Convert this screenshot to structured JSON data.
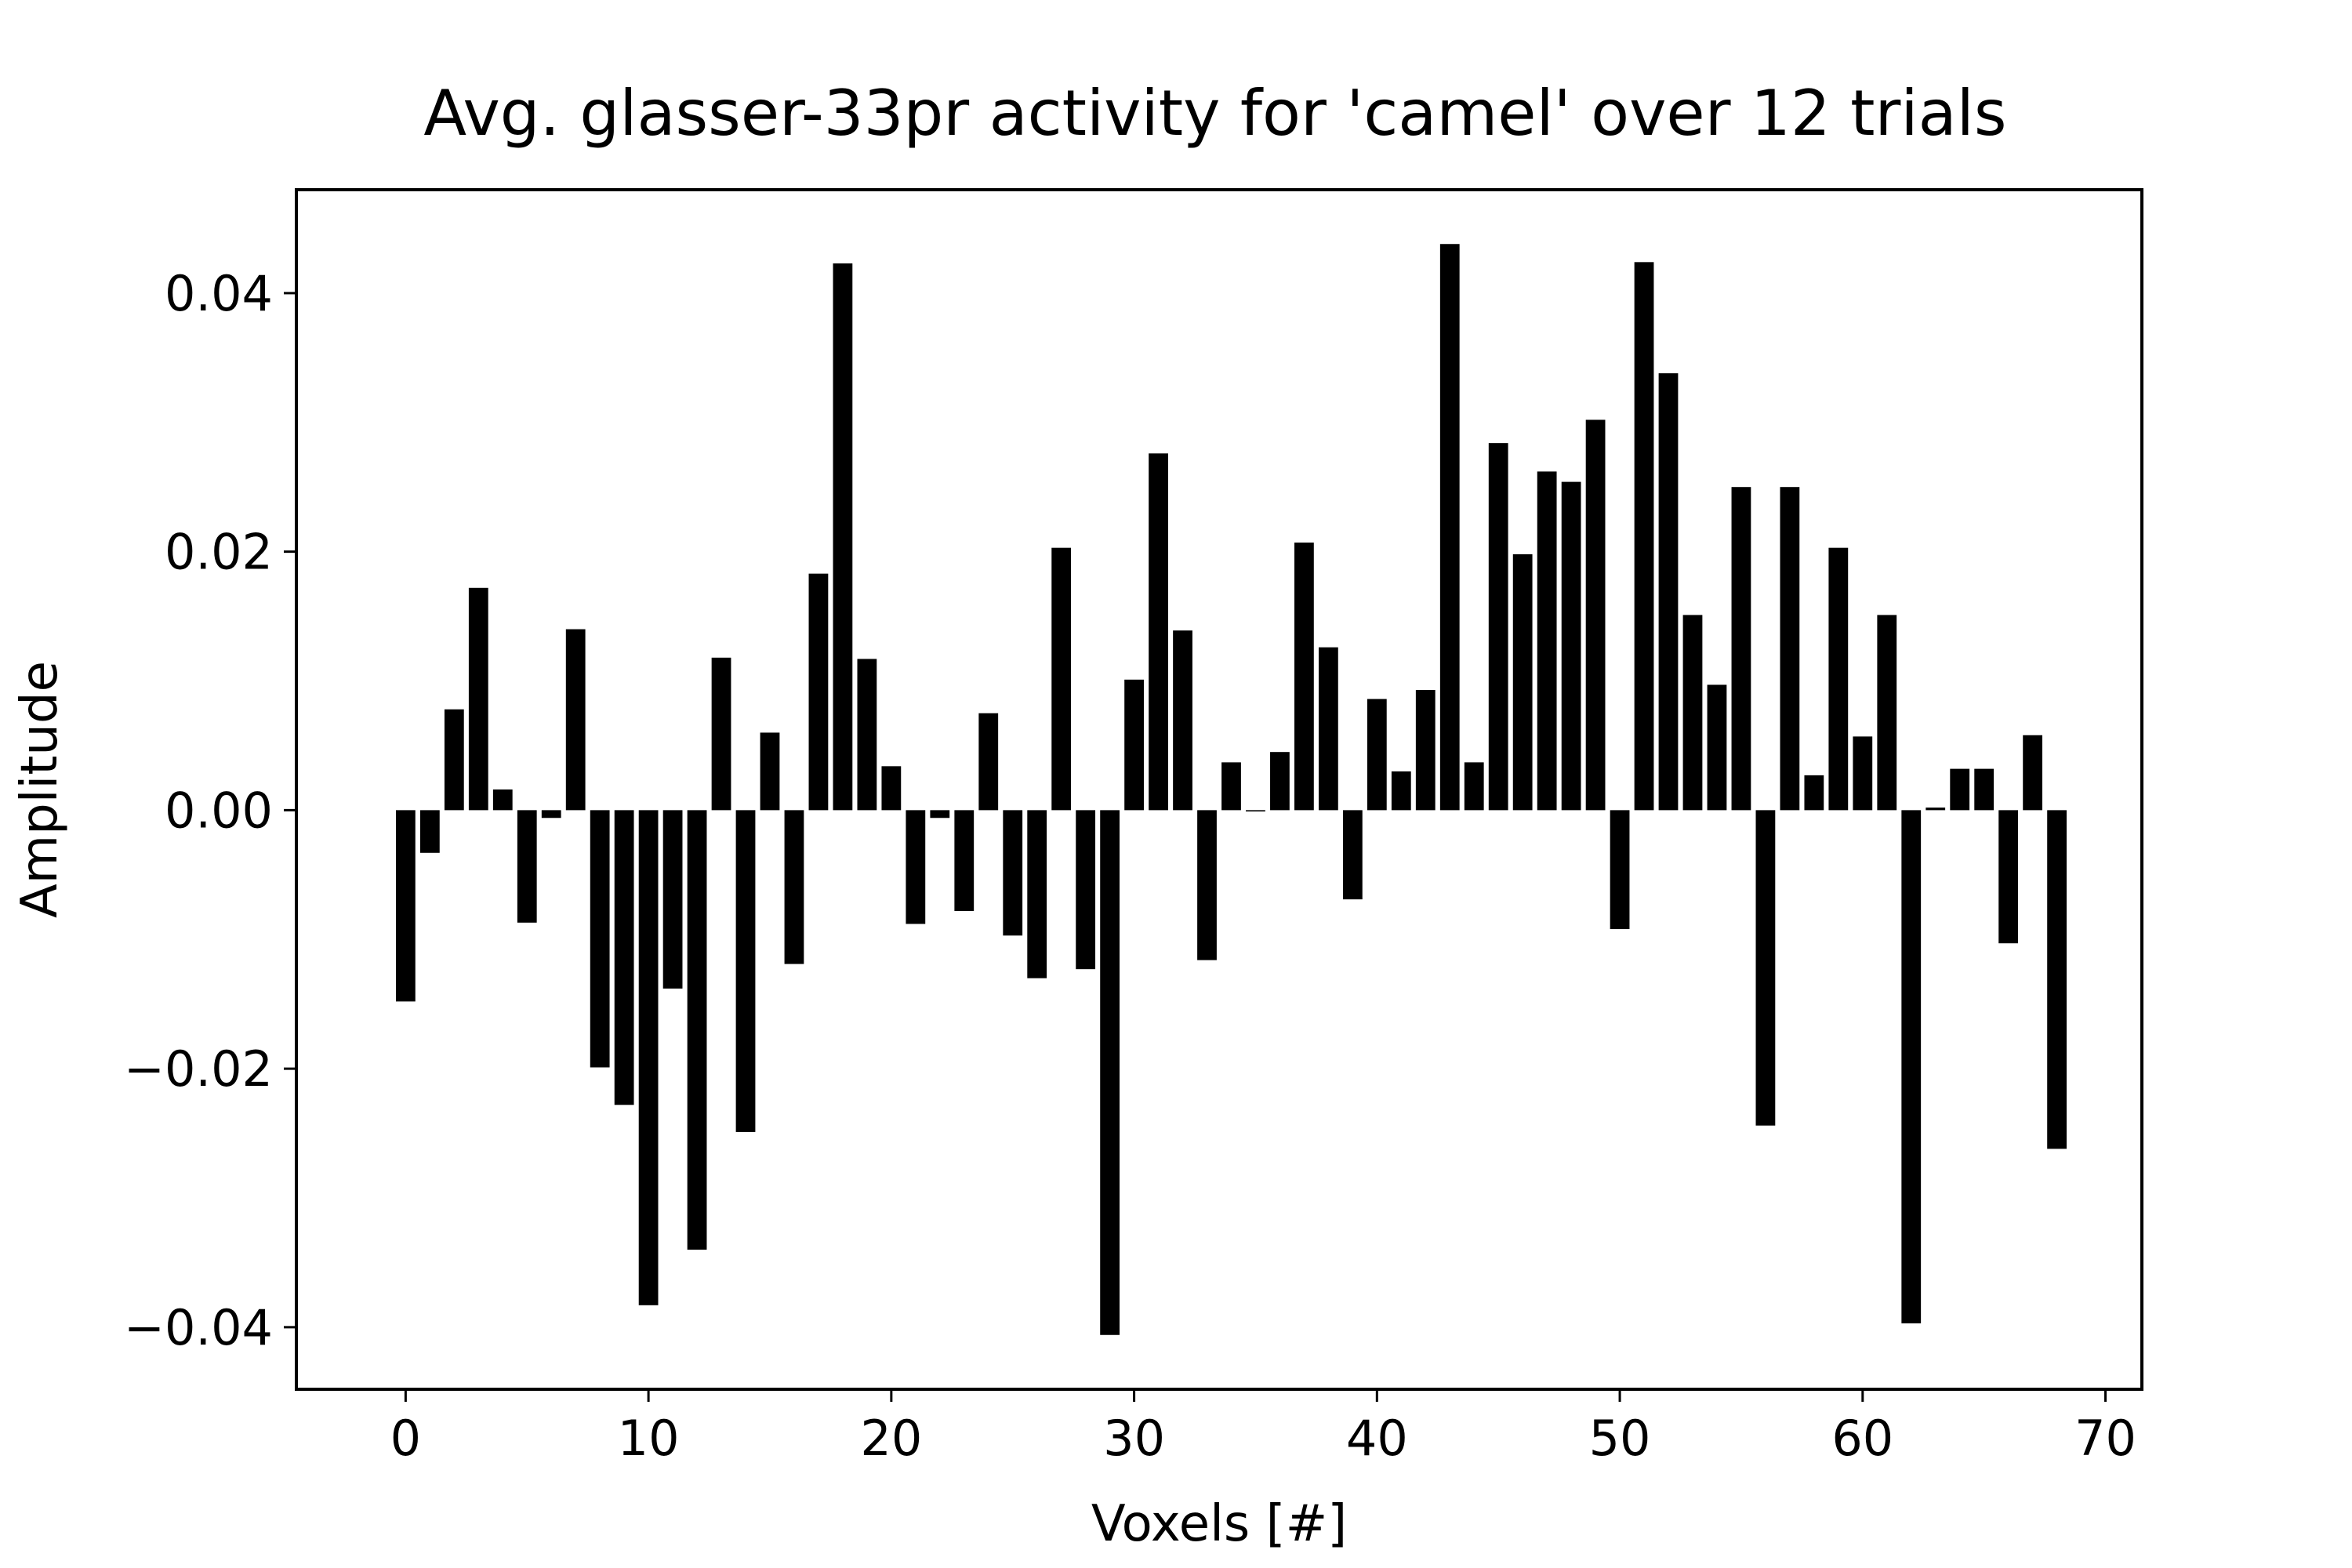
{
  "chart_data": {
    "type": "bar",
    "title": "Avg. glasser-33pr activity for 'camel' over 12 trials",
    "xlabel": "Voxels [#]",
    "ylabel": "Amplitude",
    "xlim": [
      -4.5,
      71.5
    ],
    "ylim": [
      -0.0448,
      0.048
    ],
    "x_ticks": [
      0,
      10,
      20,
      30,
      40,
      50,
      60,
      70
    ],
    "x_tick_labels": [
      "0",
      "10",
      "20",
      "30",
      "40",
      "50",
      "60",
      "70"
    ],
    "y_ticks": [
      -0.04,
      -0.02,
      0.0,
      0.02,
      0.04
    ],
    "y_tick_labels": [
      "−0.04",
      "−0.02",
      "0.00",
      "0.02",
      "0.04"
    ],
    "grid": false,
    "bar_color": "#000000",
    "x": [
      0,
      1,
      2,
      3,
      4,
      5,
      6,
      7,
      8,
      9,
      10,
      11,
      12,
      13,
      14,
      15,
      16,
      17,
      18,
      19,
      20,
      21,
      22,
      23,
      24,
      25,
      26,
      27,
      28,
      29,
      30,
      31,
      32,
      33,
      34,
      35,
      36,
      37,
      38,
      39,
      40,
      41,
      42,
      43,
      44,
      45,
      46,
      47,
      48,
      49,
      50,
      51,
      52,
      53,
      54,
      55,
      56,
      57,
      58,
      59,
      60,
      61,
      62,
      63,
      64,
      65,
      66,
      67,
      68
    ],
    "values": [
      -0.0148,
      -0.0033,
      0.0078,
      0.0172,
      0.0016,
      -0.0087,
      -0.0006,
      0.014,
      -0.0199,
      -0.0228,
      -0.0383,
      -0.0138,
      -0.034,
      0.0118,
      -0.0249,
      0.006,
      -0.0119,
      0.0183,
      0.0423,
      0.0117,
      0.0034,
      -0.0088,
      -0.0006,
      -0.0078,
      0.0075,
      -0.0097,
      -0.013,
      0.0203,
      -0.0123,
      -0.0406,
      0.0101,
      0.0276,
      0.0139,
      -0.0116,
      0.0037,
      -0.0001,
      0.0045,
      0.0207,
      0.0126,
      -0.0069,
      0.0086,
      0.003,
      0.0093,
      0.0438,
      0.0037,
      0.0284,
      0.0198,
      0.0262,
      0.0254,
      0.0302,
      -0.0092,
      0.0424,
      0.0338,
      0.0151,
      0.0097,
      0.025,
      -0.0244,
      0.025,
      0.0027,
      0.0203,
      0.0057,
      0.0151,
      -0.0397,
      0.0002,
      0.0032,
      0.0032,
      -0.0103,
      0.0058,
      -0.0262
    ]
  }
}
